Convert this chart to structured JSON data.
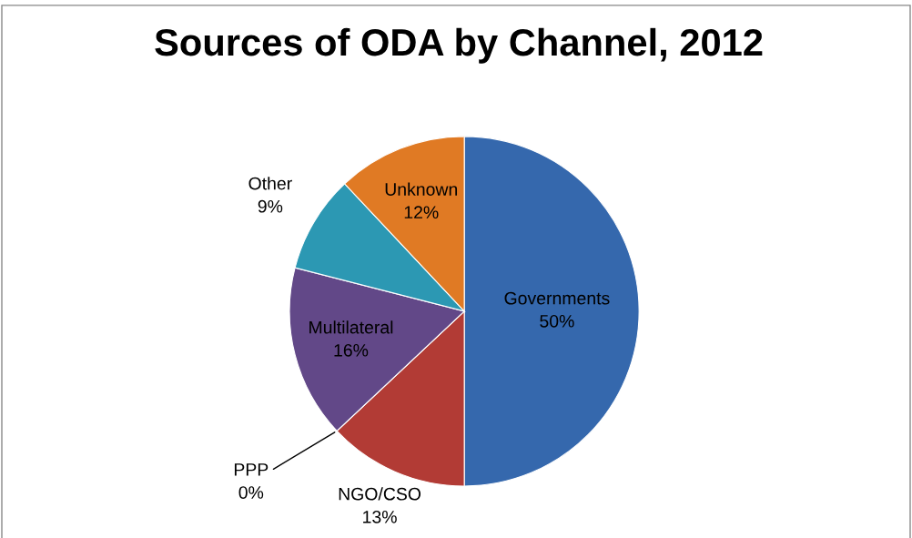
{
  "chart_data": {
    "type": "pie",
    "title": "Sources of ODA by Channel, 2012",
    "categories": [
      "Governments",
      "NGO/CSO",
      "PPP",
      "Multilateral",
      "Other",
      "Unknown"
    ],
    "values": [
      50,
      13,
      0,
      16,
      9,
      12
    ],
    "colors": [
      "#3568ad",
      "#b23b35",
      "#85a83e",
      "#624888",
      "#2c98b3",
      "#e07a24"
    ],
    "value_labels": [
      "50%",
      "13%",
      "0%",
      "16%",
      "9%",
      "12%"
    ]
  }
}
